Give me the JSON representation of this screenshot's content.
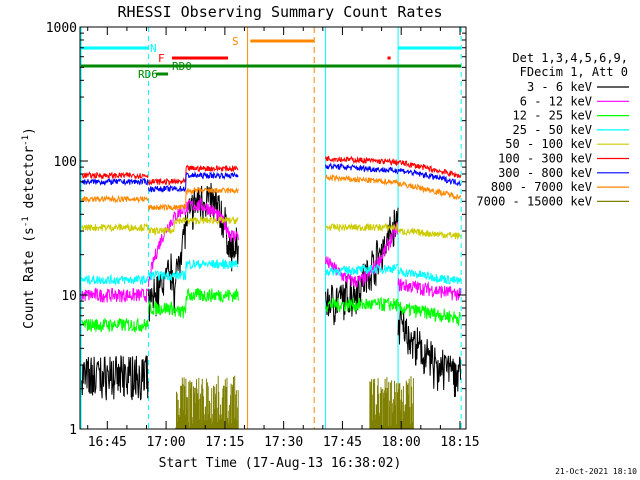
{
  "chart_data": {
    "type": "line",
    "title": "RHESSI Observing Summary Count Rates",
    "xlabel": "Start Time (17-Aug-13 16:38:02)",
    "ylabel_main": "Count Rate (s",
    "ylabel_sup1": "-1",
    "ylabel_mid": " detector",
    "ylabel_sup2": "-1",
    "ylabel_end": ")",
    "y_scale": "log",
    "ylim": [
      1,
      1000
    ],
    "xlim_minutes": [
      16.63,
      18.27
    ],
    "x_ticks": [
      "16:45",
      "17:00",
      "17:15",
      "17:30",
      "17:45",
      "18:00",
      "18:15"
    ],
    "y_ticks": [
      "1",
      "10",
      "100",
      "1000"
    ],
    "legend_title": [
      "Det 1,3,4,5,6,9,",
      "FDecim 1, Att 0"
    ],
    "legend_position": "right",
    "series": [
      {
        "name": "3 - 6 keV",
        "color": "#000000"
      },
      {
        "name": "6 - 12 keV",
        "color": "#ff00ff"
      },
      {
        "name": "12 - 25 keV",
        "color": "#00ff00"
      },
      {
        "name": "25 - 50 keV",
        "color": "#00ffff"
      },
      {
        "name": "50 - 100 keV",
        "color": "#cccc00"
      },
      {
        "name": "100 - 300 keV",
        "color": "#ff0000"
      },
      {
        "name": "300 - 800 keV",
        "color": "#0000ff"
      },
      {
        "name": "800 - 7000 keV",
        "color": "#ff8800"
      },
      {
        "name": "7000 - 15000 keV",
        "color": "#808000"
      }
    ],
    "flag_labels": {
      "night": "N",
      "flare": "F",
      "saa": "S",
      "rd6": "RD6",
      "rd0": "RD0"
    },
    "timestamp": "21-Oct-2021 18:10"
  }
}
